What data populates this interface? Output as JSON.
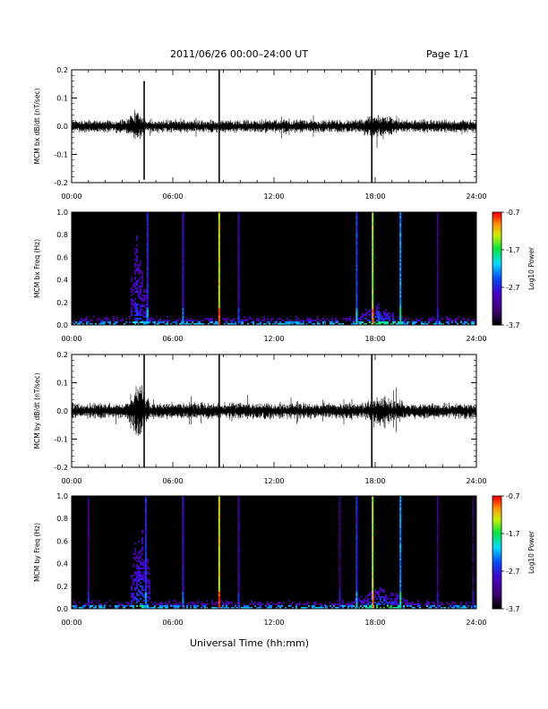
{
  "header": {
    "title": "2011/06/26  00:00–24:00 UT",
    "page": "Page 1/1"
  },
  "xaxis": {
    "title": "Universal Time (hh:mm)",
    "ticks": [
      "00:00",
      "06:00",
      "12:00",
      "18:00",
      "24:00"
    ]
  },
  "chart_data": [
    {
      "type": "line",
      "ylabel": "MCM bx dB/dt (nT/sec)",
      "ylim": [
        -0.2,
        0.2
      ],
      "yticks": [
        -0.2,
        -0.1,
        0.0,
        0.1,
        0.2
      ],
      "ytick_labels": [
        "-0.2",
        "-0.1",
        "0.0",
        "0.1",
        "0.2"
      ],
      "xlim": [
        0,
        24
      ],
      "baseline_amplitude": 0.02,
      "activity": [
        {
          "start": 3.2,
          "end": 4.4,
          "amplitude": 0.05
        },
        {
          "start": 16.8,
          "end": 19.5,
          "amplitude": 0.04
        }
      ],
      "spikes": [
        {
          "time": 4.3,
          "min": -0.19,
          "max": 0.16
        },
        {
          "time": 8.75,
          "min": -0.2,
          "max": 0.2
        },
        {
          "time": 17.8,
          "min": -0.2,
          "max": 0.2
        }
      ]
    },
    {
      "type": "heatmap",
      "ylabel": "MCM bx Freq (Hz)",
      "ylim": [
        0.0,
        1.0
      ],
      "yticks": [
        0.0,
        0.2,
        0.4,
        0.6,
        0.8,
        1.0
      ],
      "ytick_labels": [
        "0.0",
        "0.2",
        "0.4",
        "0.6",
        "0.8",
        "1.0"
      ],
      "xlim": [
        0,
        24
      ],
      "colorbar": {
        "label": "Log10 Power",
        "min": -3.7,
        "max": -0.7,
        "ticks": [
          "-0.7",
          "-1.7",
          "-2.7",
          "-3.7"
        ]
      },
      "vertical_lines": [
        {
          "time": 4.5,
          "log_power": -2.7
        },
        {
          "time": 6.6,
          "log_power": -2.9
        },
        {
          "time": 8.75,
          "log_power": -1.3
        },
        {
          "time": 9.9,
          "log_power": -3.1
        },
        {
          "time": 16.9,
          "log_power": -2.6
        },
        {
          "time": 17.85,
          "log_power": -1.4
        },
        {
          "time": 19.5,
          "log_power": -2.3
        },
        {
          "time": 21.7,
          "log_power": -3.3
        }
      ],
      "broadband_bursts": [
        {
          "start": 3.4,
          "end": 4.4,
          "max_freq": 0.92,
          "log_power": -3.2
        },
        {
          "start": 16.7,
          "end": 19.6,
          "max_freq": 0.2,
          "log_power": -3.0
        }
      ]
    },
    {
      "type": "line",
      "ylabel": "MCM by dB/dt (nT/sec)",
      "ylim": [
        -0.2,
        0.2
      ],
      "yticks": [
        -0.2,
        -0.1,
        0.0,
        0.1,
        0.2
      ],
      "ytick_labels": [
        "-0.2",
        "-0.1",
        "0.0",
        "0.1",
        "0.2"
      ],
      "xlim": [
        0,
        24
      ],
      "baseline_amplitude": 0.025,
      "activity": [
        {
          "start": 3.4,
          "end": 4.6,
          "amplitude": 0.1
        },
        {
          "start": 17.0,
          "end": 20.0,
          "amplitude": 0.05
        }
      ],
      "spikes": [
        {
          "time": 4.3,
          "min": -0.2,
          "max": 0.2
        },
        {
          "time": 8.75,
          "min": -0.2,
          "max": 0.2
        },
        {
          "time": 17.8,
          "min": -0.2,
          "max": 0.2
        }
      ]
    },
    {
      "type": "heatmap",
      "ylabel": "MCM by Freq (Hz)",
      "ylim": [
        0.0,
        1.0
      ],
      "yticks": [
        0.0,
        0.2,
        0.4,
        0.6,
        0.8,
        1.0
      ],
      "ytick_labels": [
        "0.0",
        "0.2",
        "0.4",
        "0.6",
        "0.8",
        "1.0"
      ],
      "xlim": [
        0,
        24
      ],
      "colorbar": {
        "label": "Log10 Power",
        "min": -3.7,
        "max": -0.7,
        "ticks": [
          "-0.7",
          "-1.7",
          "-2.7",
          "-3.7"
        ]
      },
      "vertical_lines": [
        {
          "time": 1.0,
          "log_power": -3.2
        },
        {
          "time": 4.4,
          "log_power": -2.7
        },
        {
          "time": 6.6,
          "log_power": -2.9
        },
        {
          "time": 8.75,
          "log_power": -1.3
        },
        {
          "time": 9.9,
          "log_power": -3.1
        },
        {
          "time": 15.9,
          "log_power": -3.3
        },
        {
          "time": 16.9,
          "log_power": -2.7
        },
        {
          "time": 17.85,
          "log_power": -1.4
        },
        {
          "time": 19.5,
          "log_power": -2.3
        },
        {
          "time": 21.7,
          "log_power": -3.3
        },
        {
          "time": 23.8,
          "log_power": -3.4
        }
      ],
      "broadband_bursts": [
        {
          "start": 3.4,
          "end": 4.6,
          "max_freq": 0.9,
          "log_power": -3.1
        },
        {
          "start": 16.7,
          "end": 19.8,
          "max_freq": 0.22,
          "log_power": -3.0
        }
      ]
    }
  ]
}
